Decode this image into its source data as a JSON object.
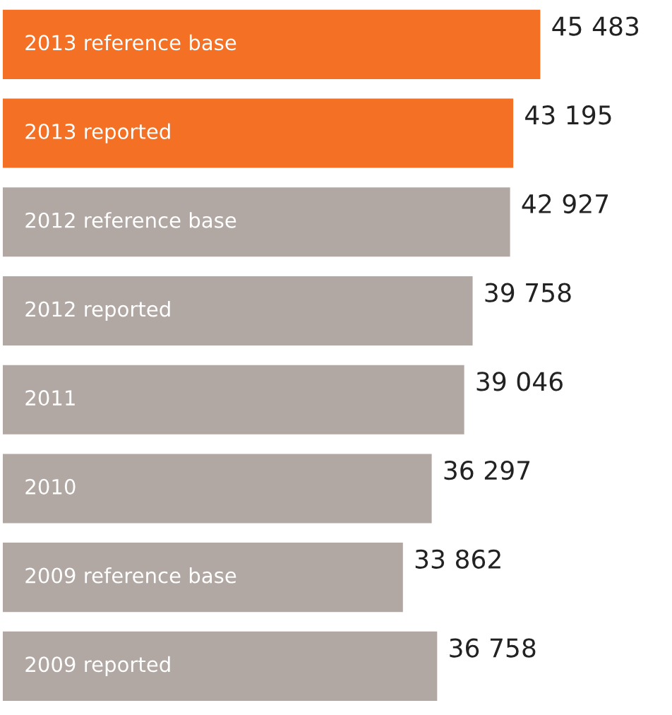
{
  "chart_data": {
    "type": "bar",
    "orientation": "horizontal",
    "categories": [
      "2013 reference base",
      "2013 reported",
      "2012 reference base",
      "2012 reported",
      "2011",
      "2010",
      "2009 reference base",
      "2009 reported"
    ],
    "values": [
      45483,
      43195,
      42927,
      39758,
      39046,
      36297,
      33862,
      36758
    ],
    "value_labels": [
      "45 483",
      "43 195",
      "42 927",
      "39 758",
      "39 046",
      "36 297",
      "33 862",
      "36 758"
    ],
    "colors": [
      "#f47025",
      "#f47025",
      "#b2a8a3",
      "#b2a8a3",
      "#b2a8a3",
      "#b2a8a3",
      "#b2a8a3",
      "#b2a8a3"
    ]
  }
}
